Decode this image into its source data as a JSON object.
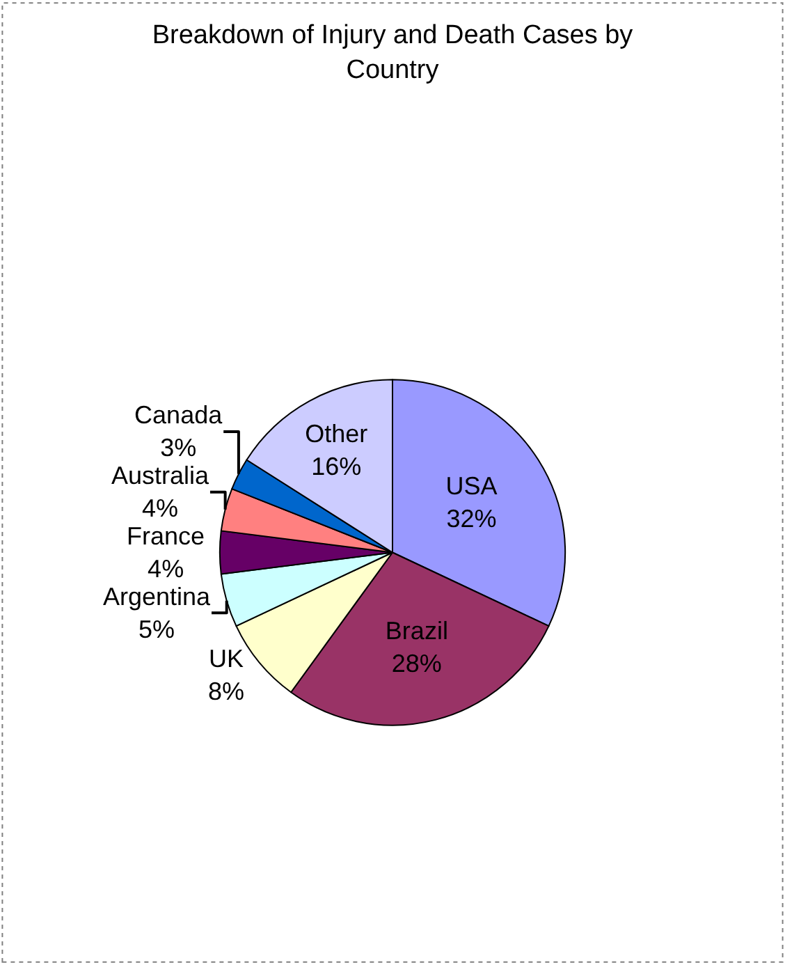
{
  "chart_data": {
    "type": "pie",
    "title": "Breakdown of Injury and Death Cases by Country",
    "categories": [
      "USA",
      "Brazil",
      "UK",
      "Argentina",
      "France",
      "Australia",
      "Canada",
      "Other"
    ],
    "values": [
      32,
      28,
      8,
      5,
      4,
      4,
      3,
      16
    ],
    "value_labels": [
      "32%",
      "28%",
      "8%",
      "5%",
      "4%",
      "4%",
      "3%",
      "16%"
    ],
    "colors": [
      "#9999ff",
      "#993366",
      "#ffffcc",
      "#ccffff",
      "#660066",
      "#ff8080",
      "#0066cc",
      "#ccccff"
    ],
    "legend": false
  }
}
